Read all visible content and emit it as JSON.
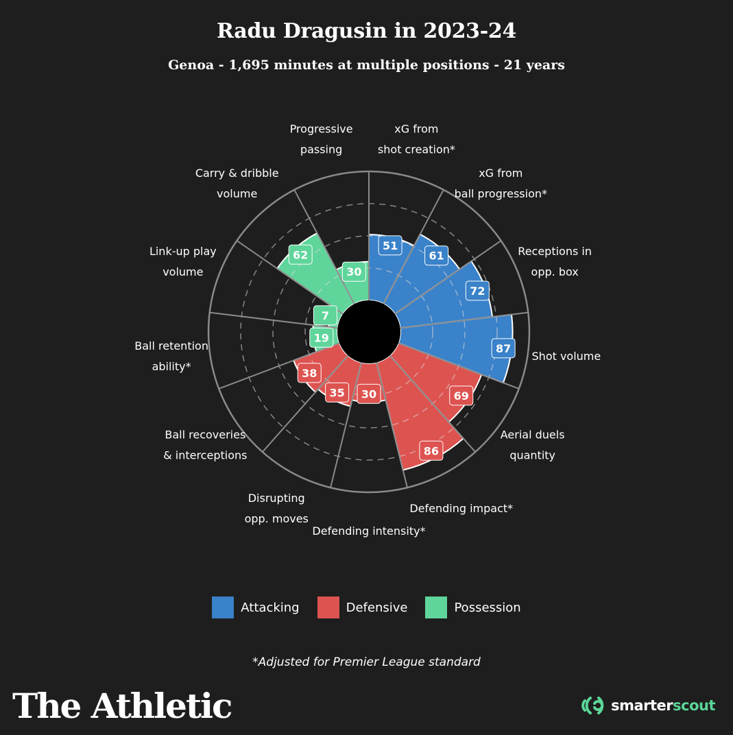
{
  "header": {
    "title": "Radu Dragusin in 2023-24",
    "subtitle": "Genoa - 1,695 minutes at multiple positions - 21 years"
  },
  "colors": {
    "Attacking": "#3a82c9",
    "Defensive": "#dd5350",
    "Possession": "#5fd59b",
    "background": "#1e1e1e",
    "grid": "#8a8a8a"
  },
  "chart_data": {
    "type": "polar-bar",
    "title": "Radu Dragusin in 2023-24",
    "range": [
      0,
      100
    ],
    "gridlines": [
      25,
      50,
      75
    ],
    "categories": [
      {
        "label": "xG from\nshot creation*",
        "value": 51,
        "group": "Attacking"
      },
      {
        "label": "xG from\nball progression*",
        "value": 61,
        "group": "Attacking"
      },
      {
        "label": "Receptions in\nopp. box",
        "value": 72,
        "group": "Attacking"
      },
      {
        "label": "Shot volume",
        "value": 87,
        "group": "Attacking"
      },
      {
        "label": "Aerial duels\nquantity",
        "value": 69,
        "group": "Defensive"
      },
      {
        "label": "Defending impact*",
        "value": 86,
        "group": "Defensive"
      },
      {
        "label": "Defending intensity*",
        "value": 30,
        "group": "Defensive"
      },
      {
        "label": "Disrupting\nopp. moves",
        "value": 35,
        "group": "Defensive"
      },
      {
        "label": "Ball recoveries\n& interceptions",
        "value": 38,
        "group": "Defensive"
      },
      {
        "label": "Ball retention\nability*",
        "value": 19,
        "group": "Possession"
      },
      {
        "label": "Link-up play\nvolume",
        "value": 7,
        "group": "Possession"
      },
      {
        "label": "Carry & dribble\nvolume",
        "value": 62,
        "group": "Possession"
      },
      {
        "label": "Progressive\npassing",
        "value": 30,
        "group": "Possession"
      }
    ]
  },
  "legend": {
    "items": [
      {
        "label": "Attacking",
        "color": "#3a82c9"
      },
      {
        "label": "Defensive",
        "color": "#dd5350"
      },
      {
        "label": "Possession",
        "color": "#5fd59b"
      }
    ]
  },
  "footer": {
    "footnote": "*Adjusted for Premier League standard",
    "brand": "The Athletic",
    "scout_a": "smarter",
    "scout_b": "scout"
  }
}
